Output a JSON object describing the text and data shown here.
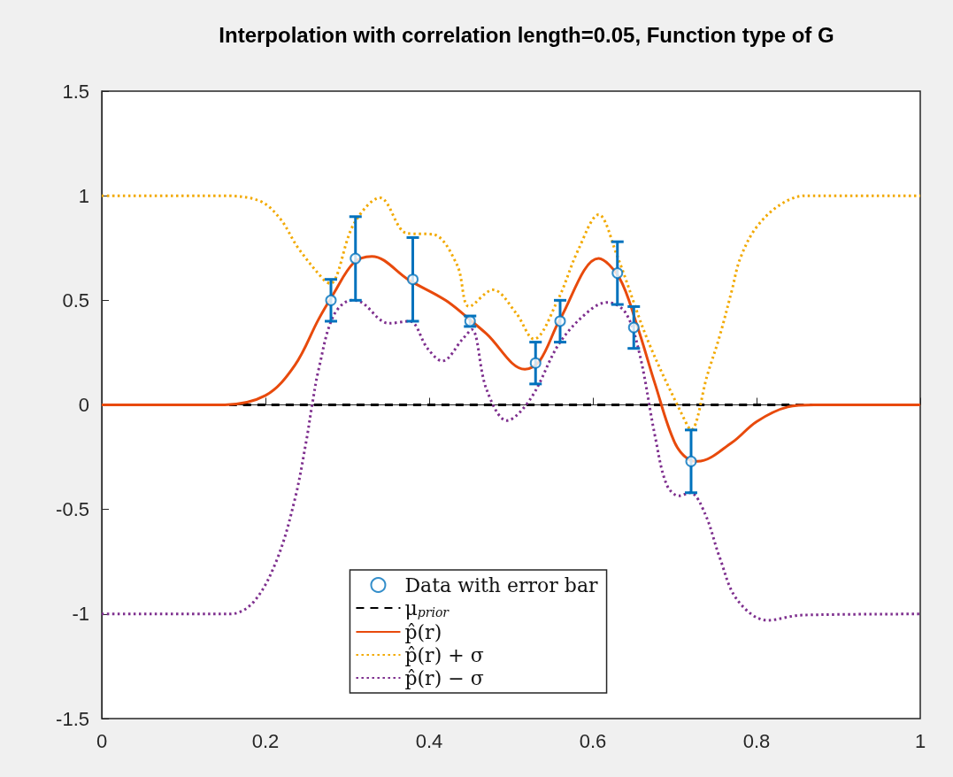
{
  "chart_data": {
    "type": "line",
    "title": "Interpolation with correlation length=0.05, Function type of G",
    "xlim": [
      0,
      1
    ],
    "xticks": [
      0,
      0.2,
      0.4,
      0.6,
      0.8,
      1
    ],
    "ylim": [
      -1.5,
      1.5
    ],
    "yticks": [
      -1.5,
      -1,
      -0.5,
      0,
      0.5,
      1,
      1.5
    ],
    "legend": "bottom",
    "series": [
      {
        "name": "Data with error bar",
        "type": "scatter",
        "marker": "circle",
        "color": "#0072bd",
        "x": [
          0.28,
          0.31,
          0.38,
          0.45,
          0.53,
          0.56,
          0.63,
          0.65,
          0.72
        ],
        "values": [
          0.5,
          0.7,
          0.6,
          0.4,
          0.2,
          0.4,
          0.63,
          0.37,
          -0.27
        ],
        "errors": [
          0.1,
          0.2,
          0.2,
          0.025,
          0.1,
          0.1,
          0.15,
          0.1,
          0.15
        ]
      },
      {
        "name": "μ$_{prior}$",
        "marker": "none",
        "line_style": "dashed",
        "color": "#000000",
        "x": [
          0,
          1
        ],
        "values": [
          0,
          0
        ]
      },
      {
        "name": "p̂(r)",
        "marker": "none",
        "line_style": "solid",
        "color": "#e84a0c",
        "x": [
          0,
          0.146,
          0.2,
          0.236,
          0.265,
          0.283,
          0.308,
          0.33,
          0.376,
          0.42,
          0.452,
          0.47,
          0.517,
          0.535,
          0.56,
          0.607,
          0.632,
          0.654,
          0.676,
          0.7,
          0.719,
          0.728,
          0.77,
          0.8,
          0.838,
          0.87,
          1
        ],
        "values": [
          0,
          0,
          0.045,
          0.19,
          0.41,
          0.53,
          0.68,
          0.71,
          0.595,
          0.5,
          0.4,
          0.34,
          0.17,
          0.21,
          0.41,
          0.7,
          0.61,
          0.38,
          0.1,
          -0.18,
          -0.265,
          -0.27,
          -0.18,
          -0.08,
          -0.01,
          0,
          0
        ]
      },
      {
        "name": "p̂(r) + σ",
        "marker": "none",
        "line_style": "dotted",
        "color": "#f2a900",
        "x": [
          0,
          0.146,
          0.193,
          0.218,
          0.24,
          0.272,
          0.279,
          0.308,
          0.34,
          0.373,
          0.405,
          0.434,
          0.449,
          0.478,
          0.506,
          0.528,
          0.557,
          0.582,
          0.607,
          0.629,
          0.668,
          0.715,
          0.72,
          0.74,
          0.755,
          0.77,
          0.78,
          0.8,
          0.83,
          0.86,
          1
        ],
        "values": [
          1,
          1,
          0.975,
          0.89,
          0.75,
          0.595,
          0.58,
          0.865,
          0.99,
          0.82,
          0.815,
          0.67,
          0.47,
          0.55,
          0.44,
          0.315,
          0.5,
          0.74,
          0.91,
          0.72,
          0.3,
          -0.095,
          -0.12,
          0.145,
          0.33,
          0.55,
          0.7,
          0.85,
          0.96,
          1,
          1
        ]
      },
      {
        "name": "p̂(r) − σ",
        "marker": "none",
        "line_style": "dotted",
        "color": "#7e2f8e",
        "x": [
          0,
          0.157,
          0.186,
          0.214,
          0.236,
          0.25,
          0.257,
          0.265,
          0.283,
          0.305,
          0.315,
          0.351,
          0.376,
          0.398,
          0.416,
          0.441,
          0.452,
          0.47,
          0.495,
          0.524,
          0.56,
          0.597,
          0.618,
          0.64,
          0.657,
          0.676,
          0.69,
          0.705,
          0.719,
          0.737,
          0.755,
          0.776,
          0.813,
          0.856,
          1
        ],
        "values": [
          -1,
          -1,
          -0.94,
          -0.74,
          -0.45,
          -0.17,
          0,
          0.17,
          0.425,
          0.5,
          0.495,
          0.39,
          0.4,
          0.27,
          0.21,
          0.315,
          0.36,
          0.075,
          -0.075,
          0.03,
          0.3,
          0.455,
          0.49,
          0.44,
          0.245,
          -0.15,
          -0.38,
          -0.435,
          -0.42,
          -0.52,
          -0.73,
          -0.93,
          -1.03,
          -1.005,
          -1
        ]
      }
    ]
  }
}
